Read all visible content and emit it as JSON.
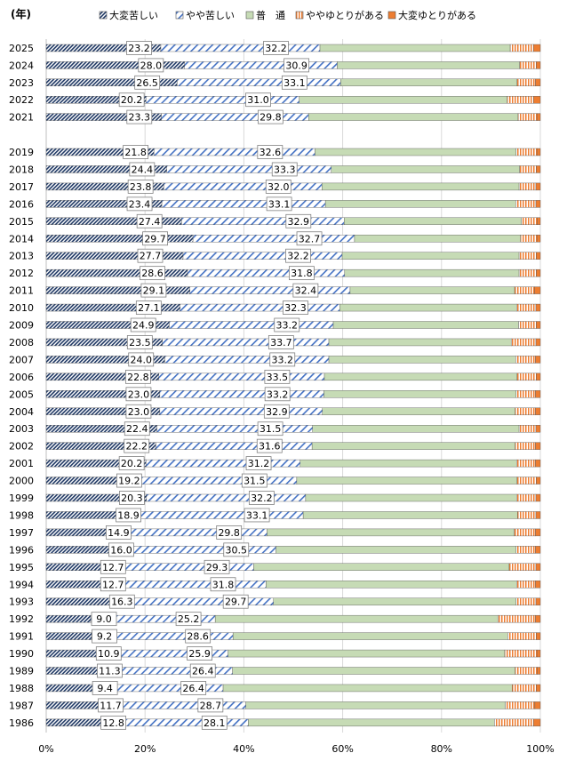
{
  "chart_data": {
    "type": "bar",
    "orientation": "horizontal",
    "stacked": "percent",
    "unit_label": "(年)",
    "xlim": [
      0,
      100
    ],
    "x_ticks": [
      "0%",
      "20%",
      "40%",
      "60%",
      "80%",
      "100%"
    ],
    "legend_position": "top",
    "categories": [
      "2025",
      "2024",
      "2023",
      "2022",
      "2021",
      "2019",
      "2018",
      "2017",
      "2016",
      "2015",
      "2014",
      "2013",
      "2012",
      "2011",
      "2010",
      "2009",
      "2008",
      "2007",
      "2006",
      "2005",
      "2004",
      "2003",
      "2002",
      "2001",
      "2000",
      "1999",
      "1998",
      "1997",
      "1996",
      "1995",
      "1994",
      "1993",
      "1992",
      "1991",
      "1990",
      "1989",
      "1988",
      "1987",
      "1986"
    ],
    "series": [
      {
        "name": "大変苦しい",
        "pattern": "dense-diagonal",
        "color": "#1f3864",
        "values": [
          23.2,
          28.0,
          26.5,
          20.2,
          23.3,
          21.8,
          24.4,
          23.8,
          23.4,
          27.4,
          29.7,
          27.7,
          28.6,
          29.1,
          27.1,
          24.9,
          23.5,
          24.0,
          22.8,
          23.0,
          23.0,
          22.4,
          22.2,
          20.2,
          19.2,
          20.3,
          18.9,
          14.9,
          16.0,
          12.7,
          12.7,
          16.3,
          9.0,
          9.2,
          10.9,
          11.3,
          9.4,
          11.7,
          12.8
        ]
      },
      {
        "name": "やや苦しい",
        "pattern": "wide-diagonal",
        "color": "#4472c4",
        "values": [
          32.2,
          30.9,
          33.1,
          31.0,
          29.8,
          32.6,
          33.3,
          32.0,
          33.1,
          32.9,
          32.7,
          32.2,
          31.8,
          32.4,
          32.3,
          33.2,
          33.7,
          33.2,
          33.5,
          33.2,
          32.9,
          31.5,
          31.6,
          31.2,
          31.5,
          32.2,
          33.1,
          29.8,
          30.5,
          29.3,
          31.8,
          29.7,
          25.2,
          28.6,
          25.9,
          26.4,
          26.4,
          28.7,
          28.1
        ]
      },
      {
        "name": "普　通",
        "pattern": "solid",
        "color": "#c6dbb5",
        "values": [
          38.5,
          36.9,
          35.7,
          42.1,
          42.4,
          40.7,
          38.1,
          39.9,
          38.5,
          35.9,
          33.6,
          35.8,
          35.3,
          33.3,
          35.8,
          37.5,
          36.9,
          37.8,
          39.0,
          38.9,
          39.0,
          41.8,
          41.1,
          43.8,
          44.6,
          42.7,
          43.4,
          50.0,
          48.6,
          51.7,
          50.7,
          49.1,
          57.2,
          55.6,
          56.0,
          57.2,
          58.5,
          52.5,
          49.8
        ]
      },
      {
        "name": "ややゆとりがある",
        "pattern": "vertical-stripe",
        "color": "#ed7d31",
        "values": [
          4.7,
          3.4,
          3.7,
          5.3,
          3.8,
          4.2,
          3.4,
          3.4,
          4.1,
          3.2,
          3.3,
          3.5,
          3.5,
          4.0,
          3.9,
          3.6,
          5.0,
          4.0,
          3.9,
          3.9,
          4.1,
          3.4,
          4.1,
          3.8,
          3.9,
          3.9,
          3.7,
          4.3,
          3.9,
          5.4,
          3.8,
          4.0,
          7.6,
          5.8,
          6.5,
          4.5,
          4.9,
          6.0,
          8.0
        ]
      },
      {
        "name": "大変ゆとりがある",
        "pattern": "solid",
        "color": "#ed7d31",
        "values": [
          1.4,
          0.8,
          1.0,
          1.4,
          0.7,
          0.7,
          0.8,
          0.9,
          0.9,
          0.6,
          0.7,
          0.8,
          0.8,
          1.2,
          0.9,
          0.8,
          0.9,
          1.0,
          0.8,
          1.0,
          1.0,
          0.9,
          1.0,
          1.0,
          0.8,
          0.9,
          0.9,
          1.0,
          1.0,
          0.9,
          1.0,
          0.9,
          1.0,
          0.8,
          0.7,
          0.6,
          0.8,
          1.1,
          1.3
        ]
      }
    ]
  }
}
